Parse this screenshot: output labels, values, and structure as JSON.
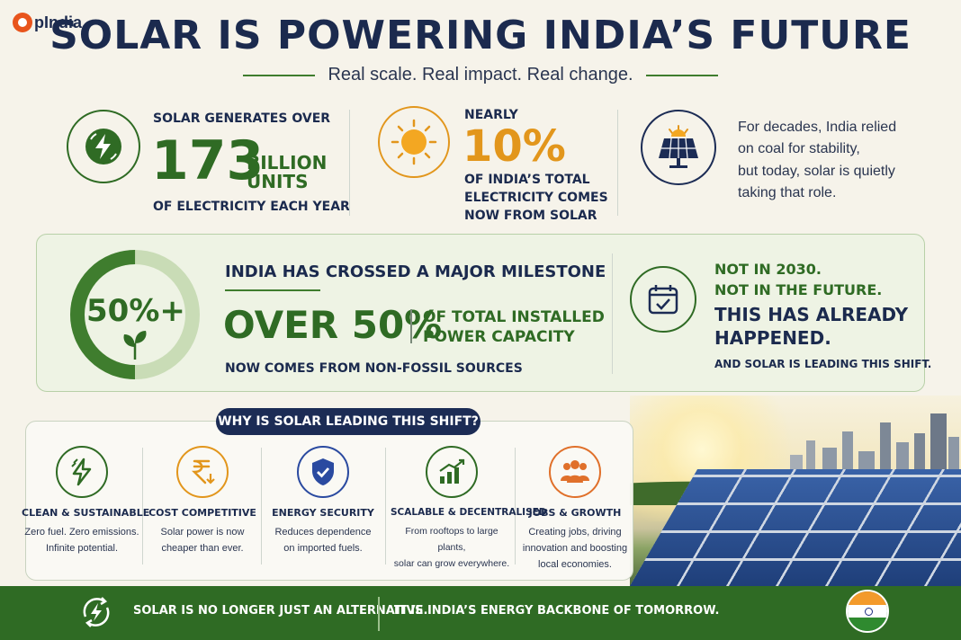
{
  "brand": {
    "logo_text": "pIndia"
  },
  "header": {
    "title": "SOLAR IS POWERING INDIA’S FUTURE",
    "subtitle": "Real scale. Real impact. Real change."
  },
  "stats": {
    "generation": {
      "lead": "SOLAR GENERATES OVER",
      "number": "173",
      "unit_line1": "BILLION",
      "unit_line2": "UNITS",
      "trail": "OF ELECTRICITY EACH YEAR"
    },
    "share": {
      "lead": "NEARLY",
      "number": "10%",
      "trail_line1": "OF INDIA’S TOTAL",
      "trail_line2": "ELECTRICITY COMES",
      "trail_line3": "NOW FROM SOLAR"
    },
    "coal": {
      "line1": "For decades, India relied",
      "line2": "on coal for stability,",
      "line3": "but today, solar is quietly",
      "line4": "taking that role."
    }
  },
  "milestone": {
    "ring_label": "50%+",
    "ring_fill_fraction": 0.5,
    "heading": "INDIA HAS CROSSED A MAJOR MILESTONE",
    "big": "OVER 50%",
    "side_line1": "OF TOTAL INSTALLED",
    "side_line2": "POWER CAPACITY",
    "trail": "NOW COMES FROM NON-FOSSIL SOURCES",
    "right_line1": "NOT IN 2030.",
    "right_line2": "NOT IN THE FUTURE.",
    "right_big1": "THIS HAS ALREADY",
    "right_big2": "HAPPENED.",
    "right_trail": "AND SOLAR IS LEADING THIS SHIFT."
  },
  "why": {
    "badge": "WHY IS SOLAR LEADING THIS SHIFT?",
    "items": [
      {
        "icon": "lightning-icon",
        "color": "#2f6b24",
        "title": "CLEAN & SUSTAINABLE",
        "desc1": "Zero fuel. Zero emissions.",
        "desc2": "Infinite potential.",
        "desc3": ""
      },
      {
        "icon": "rupee-icon",
        "color": "#e2961c",
        "title": "COST COMPETITIVE",
        "desc1": "Solar power is now",
        "desc2": "cheaper than ever.",
        "desc3": ""
      },
      {
        "icon": "shield-icon",
        "color": "#2a4aa0",
        "title": "ENERGY SECURITY",
        "desc1": "Reduces dependence",
        "desc2": "on imported fuels.",
        "desc3": ""
      },
      {
        "icon": "growth-chart-icon",
        "color": "#2f6b24",
        "title": "SCALABLE & DECENTRALISED",
        "desc1": "From rooftops to large plants,",
        "desc2": "solar can grow everywhere.",
        "desc3": ""
      },
      {
        "icon": "people-icon",
        "color": "#e0702a",
        "title": "JOBS & GROWTH",
        "desc1": "Creating jobs, driving",
        "desc2": "innovation and boosting",
        "desc3": "local economies."
      }
    ]
  },
  "footer": {
    "left": "SOLAR IS NO LONGER JUST AN ALTERNATIVE.",
    "right": "IT IS INDIA’S ENERGY BACKBONE OF TOMORROW."
  },
  "colors": {
    "green": "#2f6b24",
    "orange": "#e2961c",
    "navy": "#1b2a4e"
  }
}
